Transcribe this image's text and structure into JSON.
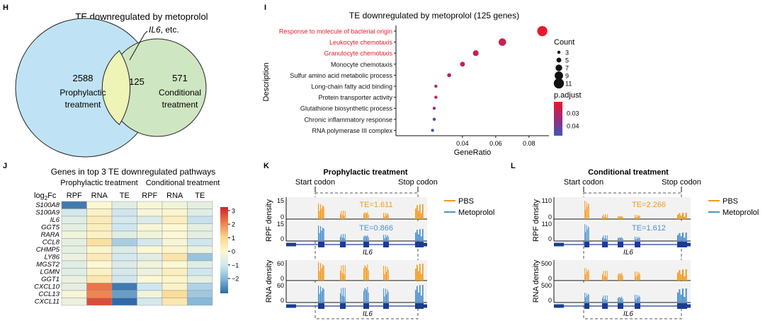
{
  "colors": {
    "pbs": "#f39a1e",
    "metoprolol": "#4a90d0",
    "venn_left": "#bfe3f4",
    "venn_right": "#cfe6c2",
    "venn_overlap": "#eef3b6",
    "red_text": "#e8192c",
    "gene_bar": "#1a3d8f"
  },
  "panels": {
    "H": {
      "letter": "H",
      "title": "TE downregulated by metoprolol",
      "callout_gene": "IL6",
      "callout_rest": ", etc.",
      "left_count": "2588",
      "left_label_1": "Prophylactic",
      "left_label_2": "treatment",
      "overlap_count": "125",
      "right_count": "571",
      "right_label_1": "Conditional",
      "right_label_2": "treatment"
    },
    "I": {
      "letter": "I",
      "title": "TE downregulated by metoprolol (125 genes)",
      "ylabel": "Description",
      "xlabel": "GeneRatio",
      "legend_count_title": "Count",
      "legend_padj_title": "p.adjust"
    },
    "J": {
      "letter": "J",
      "title": "Genes in top 3 TE downregulated pathways",
      "group_1": "Prophylactic treatment",
      "group_2": "Conditional treatment",
      "row_header_base": "log",
      "row_header_sub": "2",
      "row_header_end": "Fc"
    },
    "K": {
      "letter": "K",
      "title": "Prophylactic treatment",
      "start_codon": "Start codon",
      "stop_codon": "Stop codon",
      "te_pbs": "TE=1.611",
      "te_meto": "TE=0.866",
      "rpf_ylabel": "RPF density",
      "rna_ylabel": "RNA density",
      "gene": "IL6",
      "rpf_max": "15",
      "rpf_min": "0",
      "rna_max": "60",
      "rna_min": "0",
      "legend_pbs": "PBS",
      "legend_meto": "Metoprolol"
    },
    "L": {
      "letter": "L",
      "title": "Conditional treatment",
      "start_codon": "Start codon",
      "stop_codon": "Stop codon",
      "te_pbs": "TE=2.266",
      "te_meto": "TE=1.612",
      "rpf_ylabel": "RPF density",
      "rna_ylabel": "RNA density",
      "gene": "IL6",
      "rpf_max": "110",
      "rpf_min": "0",
      "rna_max": "500",
      "rna_min": "0",
      "legend_pbs": "PBS",
      "legend_meto": "Metoprolol"
    }
  },
  "chart_data": [
    {
      "panel": "I",
      "type": "scatter",
      "title": "TE downregulated by metoprolol (125 genes)",
      "xlabel": "GeneRatio",
      "ylabel": "Description",
      "xlim": [
        0.0,
        0.092
      ],
      "xticks": [
        0.04,
        0.06,
        0.08
      ],
      "xtick_labels": [
        "0.04",
        "0.06",
        "0.08"
      ],
      "size_legend": {
        "title": "Count",
        "values": [
          3,
          5,
          7,
          9,
          11
        ]
      },
      "color_legend": {
        "title": "p.adjust",
        "ticks": [
          0.03,
          0.04
        ],
        "tick_labels": [
          "0.03",
          "0.04"
        ],
        "high_color": "#e8192c",
        "low_color": "#3a5bb8"
      },
      "points": [
        {
          "term": "Response to molecule of bacterial origin",
          "gene_ratio": 0.088,
          "count": 11,
          "p_adjust": 0.02,
          "highlight": true
        },
        {
          "term": "Leukocyte chemotaxis",
          "gene_ratio": 0.064,
          "count": 8,
          "p_adjust": 0.025,
          "highlight": true
        },
        {
          "term": "Granulocyte chemotaxis",
          "gene_ratio": 0.048,
          "count": 6,
          "p_adjust": 0.026,
          "highlight": true
        },
        {
          "term": "Monocyte chemotaxis",
          "gene_ratio": 0.04,
          "count": 5,
          "p_adjust": 0.027,
          "highlight": false
        },
        {
          "term": "Sulfur amino acid metabolic process",
          "gene_ratio": 0.032,
          "count": 4,
          "p_adjust": 0.03,
          "highlight": false
        },
        {
          "term": "Long-chain fatty acid binding",
          "gene_ratio": 0.024,
          "count": 3,
          "p_adjust": 0.028,
          "highlight": false
        },
        {
          "term": "Protein transporter activity",
          "gene_ratio": 0.024,
          "count": 3,
          "p_adjust": 0.028,
          "highlight": false
        },
        {
          "term": "Glutathione biosynthetic process",
          "gene_ratio": 0.023,
          "count": 3,
          "p_adjust": 0.033,
          "highlight": false
        },
        {
          "term": "Chronic inflammatory response",
          "gene_ratio": 0.023,
          "count": 3,
          "p_adjust": 0.038,
          "highlight": false
        },
        {
          "term": "RNA polymerase III complex",
          "gene_ratio": 0.022,
          "count": 3,
          "p_adjust": 0.044,
          "highlight": false
        }
      ]
    },
    {
      "panel": "J",
      "type": "heatmap",
      "title": "Genes in top 3 TE downregulated pathways",
      "groups": [
        "Prophylactic treatment",
        "Conditional treatment"
      ],
      "columns": [
        "RPF",
        "RNA",
        "TE",
        "RPF",
        "RNA",
        "TE"
      ],
      "rows": [
        "S100A8",
        "S100A9",
        "IL6",
        "GGT5",
        "RARA",
        "CCL8",
        "CHMP5",
        "LY86",
        "MGST2",
        "LGMN",
        "GGT1",
        "CXCL10",
        "CCL13",
        "CXCL11"
      ],
      "values": [
        [
          -2.4,
          0.2,
          -0.3,
          0.1,
          0.0,
          -0.2
        ],
        [
          -0.5,
          0.4,
          -0.6,
          0.1,
          0.3,
          -0.3
        ],
        [
          -0.3,
          0.6,
          -0.5,
          -0.4,
          0.5,
          -0.7
        ],
        [
          -0.2,
          0.5,
          -0.6,
          0.1,
          0.2,
          -0.2
        ],
        [
          0.0,
          0.4,
          -0.3,
          0.0,
          0.2,
          -0.2
        ],
        [
          -0.2,
          0.9,
          -1.1,
          -0.5,
          0.1,
          -0.6
        ],
        [
          -0.2,
          0.3,
          -0.4,
          0.2,
          0.3,
          -0.1
        ],
        [
          -0.1,
          0.6,
          -0.5,
          -0.3,
          0.8,
          -1.3
        ],
        [
          -0.3,
          0.2,
          -0.4,
          0.0,
          0.2,
          -0.3
        ],
        [
          -0.3,
          0.4,
          -0.5,
          -0.1,
          0.5,
          -0.6
        ],
        [
          -0.1,
          0.7,
          -0.6,
          0.2,
          0.3,
          -0.2
        ],
        [
          -0.2,
          2.4,
          -2.4,
          -0.6,
          0.4,
          -1.0
        ],
        [
          0.1,
          2.2,
          -1.9,
          0.0,
          1.0,
          -1.2
        ],
        [
          -0.1,
          2.9,
          -2.6,
          -0.5,
          0.7,
          -1.5
        ]
      ],
      "colorbar": {
        "ticks": [
          3,
          2,
          1,
          0,
          -1,
          -2
        ],
        "tick_labels": [
          "3",
          "2",
          "1",
          "0",
          "−1",
          "−2"
        ],
        "range": [
          -2.6,
          3.4
        ]
      }
    }
  ]
}
